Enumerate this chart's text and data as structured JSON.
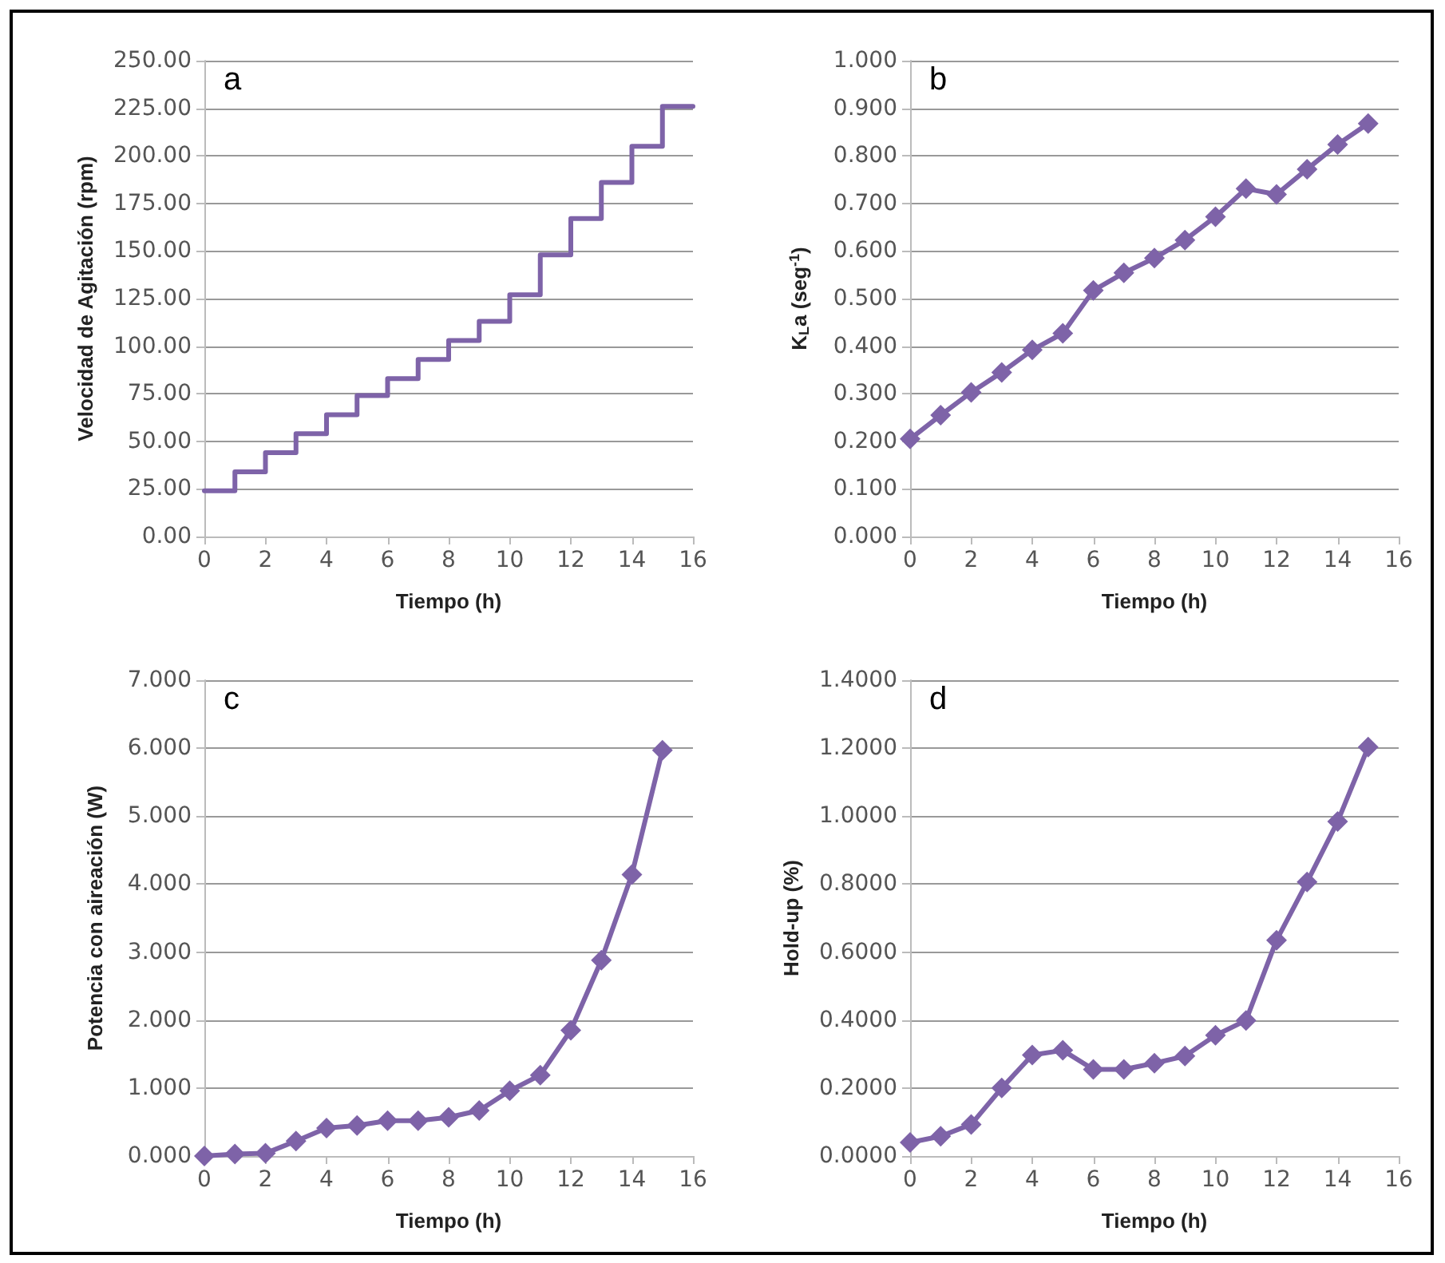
{
  "chart_data": [
    {
      "type": "step",
      "x": [
        0,
        1,
        2,
        3,
        4,
        5,
        6,
        7,
        8,
        9,
        10,
        11,
        12,
        13,
        14,
        15,
        16
      ],
      "xlabel": "Tiempo (h)",
      "ylabel": "Velocidad de Agitación (rpm)",
      "annotations": [
        "a"
      ],
      "series": [
        {
          "color": "#7e63a8",
          "values": [
            24,
            34,
            44,
            54,
            64,
            74,
            83,
            93,
            103,
            113,
            127,
            148,
            167,
            186,
            205,
            226,
            226
          ]
        }
      ],
      "xlim": [
        0,
        16
      ],
      "xticks": [
        0,
        2,
        4,
        6,
        8,
        10,
        12,
        14,
        16
      ],
      "ylim": [
        0,
        250
      ],
      "yticks": [
        {
          "value": 0,
          "label": "0.00"
        },
        {
          "value": 25,
          "label": "25.00"
        },
        {
          "value": 50,
          "label": "50.00"
        },
        {
          "value": 75,
          "label": "75.00"
        },
        {
          "value": 100,
          "label": "100.00"
        },
        {
          "value": 125,
          "label": "125.00"
        },
        {
          "value": 150,
          "label": "150.00"
        },
        {
          "value": 175,
          "label": "175.00"
        },
        {
          "value": 200,
          "label": "200.00"
        },
        {
          "value": 225,
          "label": "225.00"
        },
        {
          "value": 250,
          "label": "250.00"
        }
      ],
      "grid": "y",
      "marker": "none",
      "line_style": "solid"
    },
    {
      "type": "line",
      "x": [
        0,
        1,
        2,
        3,
        4,
        5,
        6,
        7,
        8,
        9,
        10,
        11,
        12,
        13,
        14,
        15
      ],
      "xlabel": "Tiempo (h)",
      "ylabel": "K$_{L}$a (seg$^{-1}$)",
      "annotations": [
        "b"
      ],
      "series": [
        {
          "color": "#7e63a8",
          "values": [
            0.205,
            0.255,
            0.303,
            0.345,
            0.392,
            0.427,
            0.517,
            0.554,
            0.585,
            0.623,
            0.672,
            0.731,
            0.719,
            0.772,
            0.824,
            0.868
          ]
        }
      ],
      "xlim": [
        0,
        16
      ],
      "xticks": [
        0,
        2,
        4,
        6,
        8,
        10,
        12,
        14,
        16
      ],
      "ylim": [
        0,
        1
      ],
      "yticks": [
        {
          "value": 0,
          "label": "0.000"
        },
        {
          "value": 0.1,
          "label": "0.100"
        },
        {
          "value": 0.2,
          "label": "0.200"
        },
        {
          "value": 0.3,
          "label": "0.300"
        },
        {
          "value": 0.4,
          "label": "0.400"
        },
        {
          "value": 0.5,
          "label": "0.500"
        },
        {
          "value": 0.6,
          "label": "0.600"
        },
        {
          "value": 0.7,
          "label": "0.700"
        },
        {
          "value": 0.8,
          "label": "0.800"
        },
        {
          "value": 0.9,
          "label": "0.900"
        },
        {
          "value": 1,
          "label": "1.000"
        }
      ],
      "grid": "y",
      "marker": "diamond",
      "line_style": "solid"
    },
    {
      "type": "line",
      "x": [
        0,
        1,
        2,
        3,
        4,
        5,
        6,
        7,
        8,
        9,
        10,
        11,
        12,
        13,
        14,
        15
      ],
      "xlabel": "Tiempo (h)",
      "ylabel": "Potencia con aireación (W)",
      "annotations": [
        "c"
      ],
      "series": [
        {
          "color": "#7e63a8",
          "values": [
            0.0,
            0.03,
            0.04,
            0.22,
            0.41,
            0.45,
            0.52,
            0.52,
            0.57,
            0.67,
            0.96,
            1.19,
            1.85,
            2.88,
            4.14,
            5.97
          ]
        }
      ],
      "xlim": [
        0,
        16
      ],
      "xticks": [
        0,
        2,
        4,
        6,
        8,
        10,
        12,
        14,
        16
      ],
      "ylim": [
        0,
        7
      ],
      "yticks": [
        {
          "value": 0,
          "label": "0.000"
        },
        {
          "value": 1,
          "label": "1.000"
        },
        {
          "value": 2,
          "label": "2.000"
        },
        {
          "value": 3,
          "label": "3.000"
        },
        {
          "value": 4,
          "label": "4.000"
        },
        {
          "value": 5,
          "label": "5.000"
        },
        {
          "value": 6,
          "label": "6.000"
        },
        {
          "value": 7,
          "label": "7.000"
        }
      ],
      "grid": "y",
      "marker": "diamond",
      "line_style": "solid"
    },
    {
      "type": "line",
      "x": [
        0,
        1,
        2,
        3,
        4,
        5,
        6,
        7,
        8,
        9,
        10,
        11,
        12,
        13,
        14,
        15
      ],
      "xlabel": "Tiempo (h)",
      "ylabel": "Hold-up (%)",
      "annotations": [
        "d"
      ],
      "series": [
        {
          "color": "#7e63a8",
          "values": [
            0.04,
            0.058,
            0.093,
            0.2,
            0.297,
            0.311,
            0.255,
            0.255,
            0.273,
            0.294,
            0.355,
            0.399,
            0.635,
            0.806,
            0.984,
            1.203
          ]
        }
      ],
      "xlim": [
        0,
        16
      ],
      "xticks": [
        0,
        2,
        4,
        6,
        8,
        10,
        12,
        14,
        16
      ],
      "ylim": [
        0,
        1.4
      ],
      "yticks": [
        {
          "value": 0,
          "label": "0.0000"
        },
        {
          "value": 0.2,
          "label": "0.2000"
        },
        {
          "value": 0.4,
          "label": "0.4000"
        },
        {
          "value": 0.6,
          "label": "0.6000"
        },
        {
          "value": 0.8,
          "label": "0.8000"
        },
        {
          "value": 1,
          "label": "1.0000"
        },
        {
          "value": 1.2,
          "label": "1.2000"
        },
        {
          "value": 1.4,
          "label": "1.4000"
        }
      ],
      "grid": "y",
      "marker": "diamond",
      "line_style": "solid"
    }
  ]
}
